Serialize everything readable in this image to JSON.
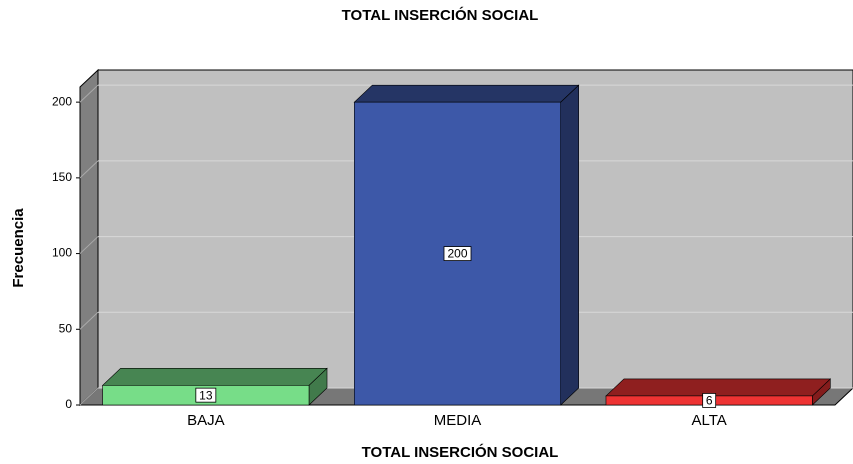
{
  "chart_data": {
    "type": "bar3d",
    "title": "TOTAL INSERCIÓN SOCIAL",
    "x_label": "TOTAL INSERCIÓN SOCIAL",
    "y_label": "Frecuencia",
    "categories": [
      "BAJA",
      "MEDIA",
      "ALTA"
    ],
    "values": [
      13,
      200,
      6
    ],
    "colors": [
      "#77dd88",
      "#3d58a8",
      "#ee3333"
    ],
    "ylim": [
      0,
      210
    ],
    "yticks": [
      0,
      50,
      100,
      150,
      200
    ],
    "grid": true
  }
}
